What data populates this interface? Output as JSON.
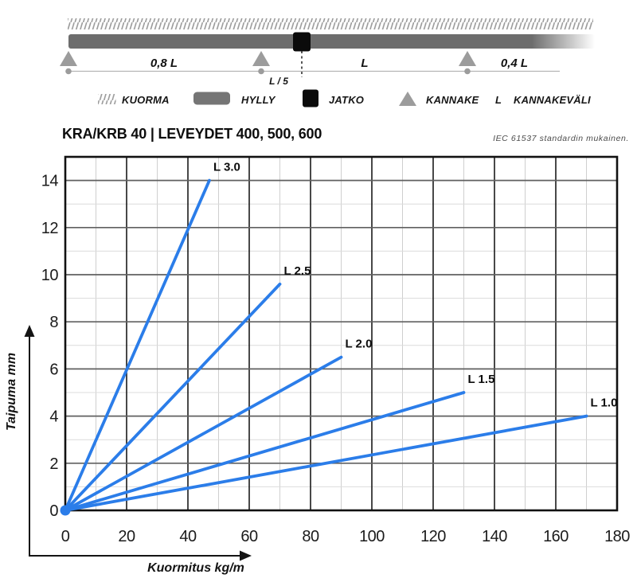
{
  "header": {
    "title": "KRA/KRB 40 | LEVEYDET 400, 500, 600",
    "standard_note": "IEC 61537 standardin mukainen."
  },
  "schematic": {
    "span_left_label": "0,8 L",
    "span_mid_label": "L",
    "span_right_label": "0,4 L",
    "joint_offset_label": "L / 5"
  },
  "legend": {
    "items": [
      {
        "icon": "load-hatch-icon",
        "label": "KUORMA"
      },
      {
        "icon": "shelf-bar-icon",
        "label": "HYLLY"
      },
      {
        "icon": "joint-square-icon",
        "label": "JATKO"
      },
      {
        "icon": "support-triangle-icon",
        "label": "KANNAKE"
      },
      {
        "icon": "span-symbol",
        "symbol": "L",
        "label": "KANNAKEVÄLI"
      }
    ]
  },
  "chart_data": {
    "type": "line",
    "title": "KRA/KRB 40 | LEVEYDET 400, 500, 600",
    "xlabel": "Kuormitus kg/m",
    "ylabel": "Taipuma mm",
    "xlim": [
      0,
      180
    ],
    "ylim": [
      0,
      15
    ],
    "x_major_ticks": [
      0,
      20,
      40,
      60,
      80,
      100,
      120,
      140,
      160,
      180
    ],
    "y_major_ticks": [
      0,
      2,
      4,
      6,
      8,
      10,
      12,
      14
    ],
    "x_minor_step": 10,
    "y_minor_step": 1,
    "grid": true,
    "legend_position": "labels-at-line-ends",
    "line_color": "#2b7de9",
    "series": [
      {
        "name": "L 3.0",
        "points": [
          [
            0,
            0
          ],
          [
            47,
            14
          ]
        ]
      },
      {
        "name": "L 2.5",
        "points": [
          [
            0,
            0
          ],
          [
            70,
            9.6
          ]
        ]
      },
      {
        "name": "L 2.0",
        "points": [
          [
            0,
            0
          ],
          [
            90,
            6.5
          ]
        ]
      },
      {
        "name": "L 1.5",
        "points": [
          [
            0,
            0
          ],
          [
            130,
            5.0
          ]
        ]
      },
      {
        "name": "L 1.0",
        "points": [
          [
            0,
            0
          ],
          [
            170,
            4.0
          ]
        ]
      }
    ]
  }
}
